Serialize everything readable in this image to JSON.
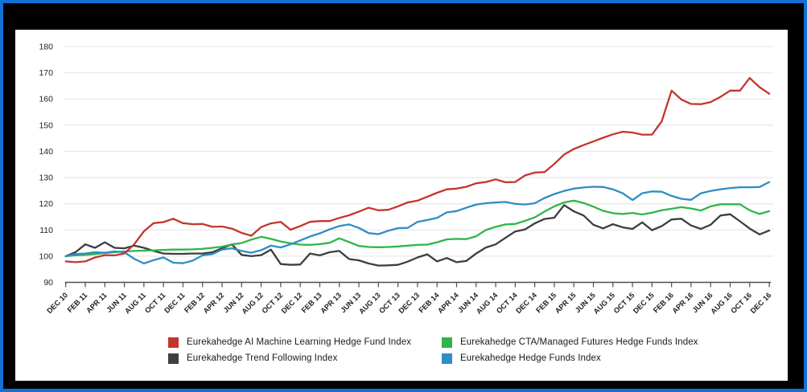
{
  "frame": {
    "border_color": "#1570d6",
    "outer_background": "#000000",
    "panel_background": "#ffffff"
  },
  "chart_data": {
    "type": "line",
    "title": "",
    "xlabel": "",
    "ylabel": "",
    "ylim": [
      90,
      180
    ],
    "y_ticks": [
      90,
      100,
      110,
      120,
      130,
      140,
      150,
      160,
      170,
      180
    ],
    "grid": "horizontal",
    "gridline_color": "#e9e9e9",
    "axis_color": "#4d4d4d",
    "tick_label_color": "#222222",
    "legend_position": "bottom",
    "x_unit": "month",
    "x_tick_step_months": 2,
    "x_tick_labels": [
      "DEC 10",
      "FEB 11",
      "APR 11",
      "JUN 11",
      "AUG 11",
      "OCT 11",
      "DEC 11",
      "FEB 12",
      "APR 12",
      "JUN 12",
      "AUG 12",
      "OCT 12",
      "DEC 12",
      "FEB 13",
      "APR 13",
      "JUN 13",
      "AUG 13",
      "OCT 13",
      "DEC 13",
      "FEB 14",
      "APR 14",
      "JUN 14",
      "AUG 14",
      "OCT 14",
      "DEC 14",
      "FEB 15",
      "APR 15",
      "JUN 15",
      "AUG 15",
      "OCT 15",
      "DEC 15",
      "FEB 16",
      "APR 16",
      "JUN 16",
      "AUG 16",
      "OCT 16",
      "DEC 16"
    ],
    "series": [
      {
        "name": "Eurekahedge AI Machine Learning Hedge Fund Index",
        "color": "#c4352e",
        "values": [
          98,
          97.7,
          98,
          99.5,
          100.4,
          100.3,
          101,
          104.5,
          109.5,
          112.6,
          113,
          114.3,
          112.6,
          112.2,
          112.3,
          111.2,
          111.3,
          110.5,
          108.9,
          107.8,
          111.1,
          112.5,
          113.1,
          110.1,
          111.5,
          113.1,
          113.4,
          113.4,
          114.6,
          115.6,
          117,
          118.5,
          117.5,
          117.7,
          119,
          120.5,
          121.2,
          122.7,
          124.2,
          125.5,
          125.8,
          126.5,
          127.8,
          128.3,
          129.3,
          128.2,
          128.3,
          130.8,
          131.9,
          132.1,
          135.2,
          138.8,
          140.9,
          142.4,
          143.8,
          145.2,
          146.5,
          147.5,
          147.2,
          146.4,
          146.4,
          151.5,
          163.2,
          159.8,
          158.1,
          158,
          158.8,
          160.8,
          163.2,
          163.2,
          168,
          164.5,
          162
        ]
      },
      {
        "name": "Eurekahedge Trend Following Index",
        "color": "#3e3e3e",
        "values": [
          100,
          101.5,
          104.5,
          103.2,
          105.3,
          103.2,
          103,
          104,
          103.2,
          102,
          101,
          100.9,
          100.9,
          101,
          101,
          101.5,
          103,
          104.5,
          100.5,
          100,
          100.4,
          102.5,
          97,
          96.7,
          96.8,
          101,
          100.3,
          101.5,
          102,
          98.9,
          98.4,
          97.2,
          96.4,
          96.5,
          96.7,
          97.9,
          99.5,
          100.7,
          98,
          99.3,
          97.7,
          98.2,
          101,
          103.3,
          104.5,
          107,
          109.4,
          110.2,
          112.5,
          114.2,
          114.7,
          119.5,
          117.1,
          115.5,
          112,
          110.6,
          112.2,
          111,
          110.4,
          112.9,
          109.9,
          111.5,
          114,
          114.3,
          111.7,
          110.4,
          112,
          115.5,
          116,
          113.3,
          110.5,
          108.3,
          109.8
        ]
      },
      {
        "name": "Eurekahedge CTA/Managed Futures Hedge Funds Index",
        "color": "#2fb54a",
        "values": [
          100,
          100.3,
          100.5,
          100.8,
          101.2,
          101.5,
          101.8,
          102,
          102.1,
          102.2,
          102.4,
          102.5,
          102.5,
          102.6,
          102.8,
          103.2,
          103.6,
          104.5,
          105,
          106.3,
          107.4,
          106.6,
          105.6,
          104.9,
          104.4,
          104.3,
          104.6,
          105.1,
          106.8,
          105.4,
          103.9,
          103.5,
          103.4,
          103.5,
          103.7,
          104,
          104.3,
          104.4,
          105.3,
          106.4,
          106.6,
          106.5,
          107.6,
          110,
          111.2,
          112.1,
          112.3,
          113.5,
          114.8,
          117,
          119,
          120.5,
          121.2,
          120.3,
          118.9,
          117.3,
          116.4,
          116.1,
          116.5,
          115.9,
          116.6,
          117.5,
          118.1,
          118.7,
          118.2,
          117.4,
          119,
          119.8,
          119.8,
          119.8,
          117.5,
          116.1,
          117.2
        ]
      },
      {
        "name": "Eurekahedge Hedge Funds Index",
        "color": "#2f8dc3",
        "values": [
          100,
          100.8,
          101,
          101.5,
          101.3,
          101.8,
          101.5,
          99,
          97.2,
          98.5,
          99.5,
          97.5,
          97.3,
          98.3,
          100.3,
          100.8,
          102.5,
          103,
          102,
          101.3,
          102.3,
          104,
          103.3,
          104.5,
          106,
          107.5,
          108.7,
          110.2,
          111.5,
          112.1,
          110.8,
          108.8,
          108.4,
          109.7,
          110.7,
          110.8,
          113.1,
          113.8,
          114.6,
          116.7,
          117.2,
          118.5,
          119.7,
          120.2,
          120.5,
          120.7,
          120,
          119.7,
          120.2,
          122.2,
          123.7,
          124.9,
          125.8,
          126.2,
          126.5,
          126.4,
          125.5,
          124,
          121.4,
          124,
          124.7,
          124.6,
          123,
          121.9,
          121.5,
          124,
          124.9,
          125.5,
          126,
          126.3,
          126.3,
          126.4,
          128.3
        ]
      }
    ]
  }
}
